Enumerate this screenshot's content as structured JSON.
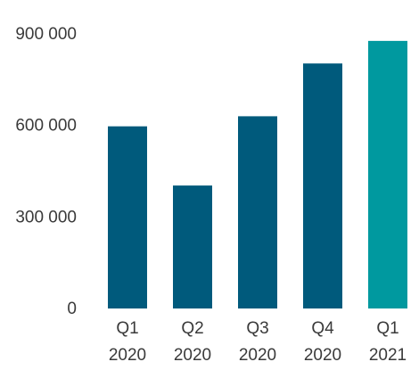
{
  "chart_data": {
    "type": "bar",
    "categories": [
      [
        "Q1",
        "2020"
      ],
      [
        "Q2",
        "2020"
      ],
      [
        "Q3",
        "2020"
      ],
      [
        "Q4",
        "2020"
      ],
      [
        "Q1",
        "2021"
      ]
    ],
    "values": [
      597000,
      403000,
      630000,
      803000,
      877000
    ],
    "ylim": [
      0,
      900000
    ],
    "yticks": [
      0,
      300000,
      600000,
      900000
    ],
    "ytick_labels": [
      "0",
      "300 000",
      "600 000",
      "900 000"
    ],
    "bar_colors": [
      "#005a7c",
      "#005a7c",
      "#005a7c",
      "#005a7c",
      "#00999f"
    ],
    "grid": false,
    "legend": "none"
  }
}
